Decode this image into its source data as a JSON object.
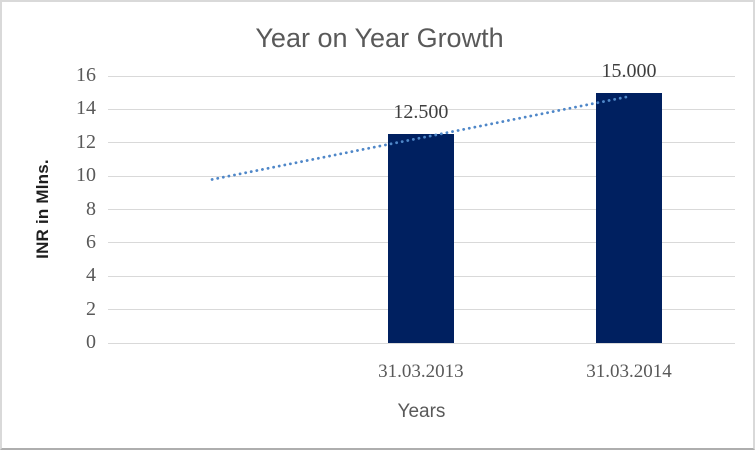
{
  "chart_data": {
    "type": "bar",
    "title": "Year on Year Growth",
    "categories": [
      "31.03.2013",
      "31.03.2014"
    ],
    "values": [
      12.5,
      15
    ],
    "data_labels": [
      "12.500",
      "15.000"
    ],
    "xlabel": "Years",
    "ylabel": "INR in Mlns.",
    "ylim": [
      0,
      16
    ],
    "yticks": [
      16,
      14,
      12,
      10,
      8,
      6,
      4,
      2,
      0
    ],
    "grid": true,
    "legend": "none",
    "bar_color": "#002060",
    "gridline_color": "#d9d9d9",
    "title_color": "#595959",
    "tick_label_color": "#595959",
    "data_label_color": "#3f3f3f",
    "trendline": {
      "style": "dotted",
      "color": "#4f87c8",
      "start_value": 9.8,
      "end_value": 14.75
    }
  }
}
